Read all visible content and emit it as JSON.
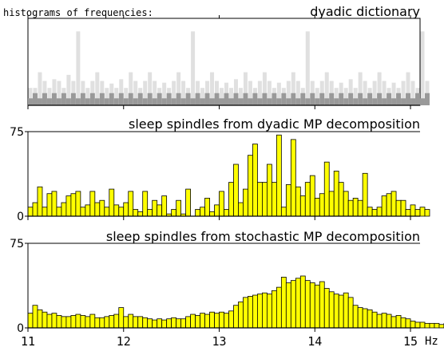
{
  "page": {
    "header": "histograms of frequencies:",
    "x_unit": "Hz"
  },
  "colors": {
    "background": "#ffffff",
    "axis": "#000000",
    "bar_fill": "#ffff00",
    "bar_stroke": "#000000",
    "dict_light": "#e0e0e0",
    "dict_dark": "#999999"
  },
  "chart_data": [
    {
      "type": "bar",
      "panel": "dyadic-dictionary",
      "title": "dyadic dictionary",
      "xlim": [
        11,
        15.1
      ],
      "ylim": [
        0,
        100
      ],
      "bin_width": 0.05,
      "x_start": 11,
      "values": [
        20,
        20,
        38,
        28,
        20,
        30,
        28,
        20,
        35,
        28,
        85,
        28,
        20,
        28,
        38,
        28,
        20,
        25,
        20,
        30,
        20,
        38,
        28,
        20,
        28,
        38,
        28,
        20,
        26,
        20,
        28,
        38,
        28,
        20,
        85,
        28,
        20,
        28,
        38,
        28,
        20,
        26,
        20,
        30,
        20,
        38,
        28,
        20,
        28,
        38,
        28,
        20,
        26,
        20,
        28,
        38,
        28,
        20,
        85,
        28,
        20,
        28,
        38,
        28,
        20,
        26,
        20,
        30,
        20,
        38,
        28,
        20,
        28,
        38,
        28,
        20,
        26,
        20,
        28,
        38,
        28,
        20,
        85,
        28
      ],
      "values_light": [
        0,
        0,
        0,
        0,
        0,
        0,
        0,
        0,
        0,
        0,
        0,
        0,
        0,
        0,
        0,
        0,
        0,
        0,
        0,
        0,
        0,
        0,
        0,
        0,
        0,
        0,
        0,
        0,
        0,
        0,
        0,
        0,
        0,
        0,
        0,
        0,
        0,
        0,
        0,
        0,
        0,
        0,
        0,
        0,
        0,
        0,
        0,
        0,
        0,
        0,
        0,
        0,
        0,
        0,
        0,
        0,
        0,
        0,
        0,
        0,
        0,
        0,
        0,
        0,
        0,
        0,
        0,
        0,
        0,
        0,
        0,
        0,
        0,
        0,
        0,
        0,
        0,
        0,
        0,
        0,
        0,
        0,
        0,
        0
      ]
    },
    {
      "type": "bar",
      "panel": "dyadic-mp",
      "title": "sleep spindles from dyadic MP decomposition",
      "xlim": [
        11,
        15.1
      ],
      "ylim": [
        0,
        75
      ],
      "yticks": [
        0,
        75
      ],
      "bin_width": 0.05,
      "x_start": 11,
      "values": [
        8,
        12,
        26,
        8,
        20,
        22,
        8,
        12,
        18,
        20,
        22,
        8,
        10,
        22,
        12,
        14,
        8,
        24,
        10,
        8,
        12,
        22,
        6,
        4,
        22,
        6,
        14,
        10,
        18,
        2,
        6,
        14,
        2,
        24,
        0,
        6,
        8,
        16,
        4,
        10,
        22,
        6,
        30,
        46,
        12,
        24,
        54,
        64,
        30,
        30,
        46,
        30,
        72,
        8,
        28,
        68,
        26,
        18,
        30,
        36,
        16,
        20,
        48,
        22,
        40,
        30,
        22,
        14,
        16,
        14,
        38,
        8,
        6,
        8,
        18,
        20,
        22,
        14,
        14,
        6,
        10,
        6,
        8,
        6
      ],
      "values2": [
        4,
        4,
        2,
        8,
        6,
        2,
        4,
        4,
        6,
        6,
        4,
        6,
        8,
        4,
        4,
        8,
        10,
        6,
        4,
        6,
        4,
        6,
        4,
        4,
        6,
        6,
        4,
        4,
        6,
        4,
        4,
        4,
        6,
        4,
        8,
        6,
        6,
        8,
        6,
        4,
        6,
        4,
        4,
        4,
        4,
        4,
        4,
        4,
        4,
        4,
        4,
        4,
        4,
        4,
        4,
        4,
        4,
        4,
        4,
        4,
        4,
        4,
        4,
        4,
        4,
        4,
        4,
        4,
        4,
        4,
        4,
        4,
        4,
        4,
        4,
        4,
        4,
        4,
        4,
        4,
        4,
        4,
        4,
        4
      ]
    },
    {
      "type": "bar",
      "panel": "stochastic-mp",
      "title": "sleep spindles from stochastic MP decomposition",
      "xlim": [
        11,
        15.1
      ],
      "ylim": [
        0,
        75
      ],
      "yticks": [
        0,
        75
      ],
      "x_ticks": [
        11,
        12,
        13,
        14,
        15
      ],
      "bin_width": 0.05,
      "x_start": 11,
      "values": [
        13,
        20,
        16,
        14,
        12,
        13,
        11,
        10,
        10,
        11,
        12,
        11,
        10,
        12,
        9,
        9,
        10,
        11,
        12,
        18,
        10,
        12,
        10,
        10,
        9,
        8,
        7,
        8,
        7,
        8,
        9,
        8,
        8,
        10,
        12,
        11,
        13,
        12,
        14,
        13,
        14,
        13,
        15,
        20,
        23,
        27,
        28,
        29,
        30,
        31,
        30,
        33,
        36,
        45,
        40,
        42,
        44,
        46,
        42,
        40,
        38,
        41,
        35,
        32,
        30,
        29,
        31,
        27,
        20,
        18,
        17,
        16,
        14,
        12,
        13,
        12,
        10,
        11,
        9,
        8,
        6,
        5,
        5,
        4,
        4,
        4,
        3,
        4,
        3,
        3,
        2,
        3,
        2,
        1,
        1,
        1
      ],
      "values2": []
    }
  ]
}
